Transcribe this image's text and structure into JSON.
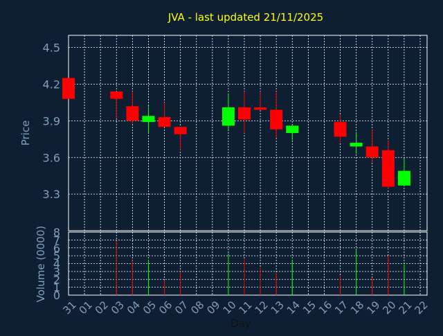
{
  "chart_data": {
    "type": "candlestick",
    "title": "JVA - last updated 21/11/2025",
    "xlabel": "Day",
    "colors": {
      "background": "#0f1f33",
      "up": "#00ff00",
      "down": "#ff0000",
      "title": "#ffff00",
      "axis_text": "#7f9fbf",
      "grid": "#ffffff"
    },
    "x_ticks": [
      "31",
      "01",
      "02",
      "03",
      "04",
      "05",
      "06",
      "07",
      "08",
      "09",
      "10",
      "11",
      "12",
      "13",
      "14",
      "15",
      "16",
      "17",
      "18",
      "19",
      "20",
      "21",
      "22"
    ],
    "price_panel": {
      "ylabel": "Price",
      "ylim": [
        3.0,
        4.6
      ],
      "y_ticks": [
        "3.3",
        "3.6",
        "3.9",
        "4.2",
        "4.5"
      ],
      "candles": [
        {
          "day": "31",
          "open": 4.25,
          "close": 4.08,
          "high": 4.25,
          "low": 4.08
        },
        {
          "day": "03",
          "open": 4.14,
          "close": 4.08,
          "high": 4.14,
          "low": 3.92
        },
        {
          "day": "04",
          "open": 4.02,
          "close": 3.9,
          "high": 4.14,
          "low": 3.88
        },
        {
          "day": "05",
          "open": 3.89,
          "close": 3.94,
          "high": 4.02,
          "low": 3.8
        },
        {
          "day": "06",
          "open": 3.93,
          "close": 3.85,
          "high": 4.05,
          "low": 3.85
        },
        {
          "day": "07",
          "open": 3.85,
          "close": 3.79,
          "high": 3.85,
          "low": 3.66
        },
        {
          "day": "10",
          "open": 3.86,
          "close": 4.01,
          "high": 4.12,
          "low": 3.83
        },
        {
          "day": "11",
          "open": 4.01,
          "close": 3.91,
          "high": 4.14,
          "low": 3.8
        },
        {
          "day": "12",
          "open": 4.01,
          "close": 3.99,
          "high": 4.14,
          "low": 3.99
        },
        {
          "day": "13",
          "open": 3.99,
          "close": 3.83,
          "high": 4.14,
          "low": 3.76
        },
        {
          "day": "14",
          "open": 3.8,
          "close": 3.86,
          "high": 3.86,
          "low": 3.74
        },
        {
          "day": "17",
          "open": 3.89,
          "close": 3.77,
          "high": 3.95,
          "low": 3.72
        },
        {
          "day": "18",
          "open": 3.69,
          "close": 3.72,
          "high": 3.81,
          "low": 3.63
        },
        {
          "day": "19",
          "open": 3.69,
          "close": 3.6,
          "high": 3.83,
          "low": 3.56
        },
        {
          "day": "20",
          "open": 3.66,
          "close": 3.36,
          "high": 3.74,
          "low": 3.34
        },
        {
          "day": "21",
          "open": 3.37,
          "close": 3.49,
          "high": 3.59,
          "low": 3.37
        }
      ]
    },
    "volume_panel": {
      "ylabel": "Volume (0000)",
      "ylim": [
        0,
        8
      ],
      "y_ticks": [
        "0",
        "1",
        "2",
        "3",
        "4",
        "5",
        "6",
        "7",
        "8"
      ],
      "bars": [
        {
          "day": "31",
          "value": 0,
          "color": "down"
        },
        {
          "day": "03",
          "value": 6.9,
          "color": "down"
        },
        {
          "day": "04",
          "value": 4.4,
          "color": "down"
        },
        {
          "day": "05",
          "value": 4.5,
          "color": "up"
        },
        {
          "day": "06",
          "value": 1.9,
          "color": "down"
        },
        {
          "day": "07",
          "value": 3.0,
          "color": "down"
        },
        {
          "day": "10",
          "value": 5.3,
          "color": "up"
        },
        {
          "day": "11",
          "value": 4.6,
          "color": "down"
        },
        {
          "day": "12",
          "value": 3.5,
          "color": "down"
        },
        {
          "day": "13",
          "value": 2.8,
          "color": "down"
        },
        {
          "day": "14",
          "value": 4.5,
          "color": "up"
        },
        {
          "day": "17",
          "value": 2.5,
          "color": "down"
        },
        {
          "day": "18",
          "value": 5.8,
          "color": "up"
        },
        {
          "day": "19",
          "value": 2.2,
          "color": "down"
        },
        {
          "day": "20",
          "value": 5.0,
          "color": "down"
        },
        {
          "day": "21",
          "value": 3.9,
          "color": "up"
        }
      ]
    }
  }
}
